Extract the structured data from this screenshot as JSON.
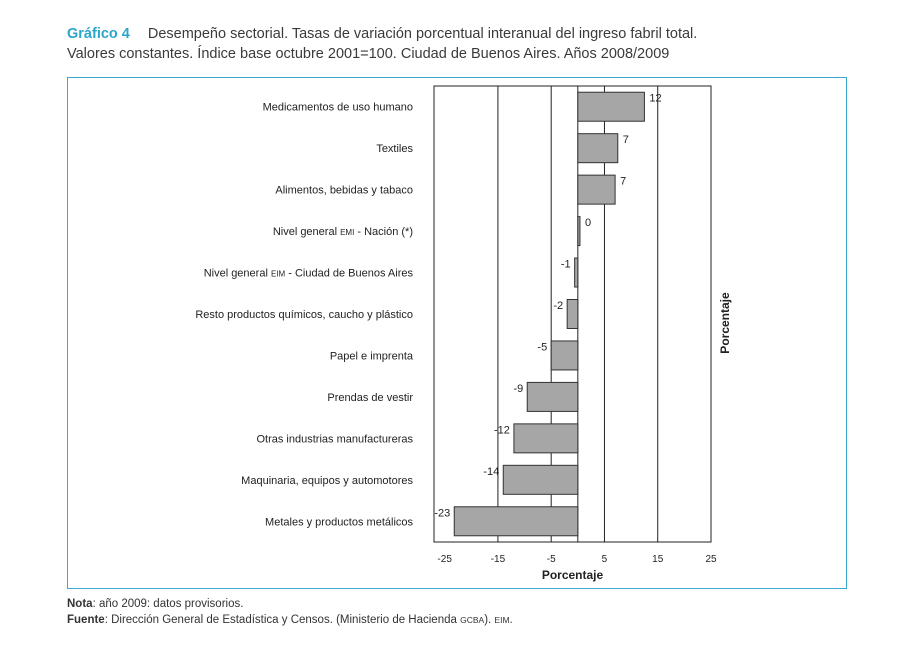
{
  "header": {
    "number": "Gráfico 4",
    "title_line1": "Desempeño sectorial. Tasas de variación porcentual interanual del ingreso fabril total.",
    "title_line2": "Valores constantes. Índice base octubre 2001=100. Ciudad de Buenos Aires. Años 2008/2009"
  },
  "chart_data": {
    "type": "bar",
    "orientation": "horizontal",
    "categories": [
      "Medicamentos de uso humano",
      "Textiles",
      "Alimentos, bebidas y tabaco",
      "Nivel general EMI - Nación (*)",
      "Nivel general EIM - Ciudad de Buenos Aires",
      "Resto productos químicos, caucho y plástico",
      "Papel e imprenta",
      "Prendas de vestir",
      "Otras industrias manufactureras",
      "Maquinaria, equipos y automotores",
      "Metales y productos metálicos"
    ],
    "category_parts": [
      [
        "Medicamentos de uso humano"
      ],
      [
        "Textiles"
      ],
      [
        "Alimentos, bebidas y tabaco"
      ],
      [
        "Nivel general ",
        "EMI",
        " - Nación (*)"
      ],
      [
        "Nivel general ",
        "EIM",
        " - Ciudad de Buenos Aires"
      ],
      [
        "Resto productos químicos, caucho y plástico"
      ],
      [
        "Papel e imprenta"
      ],
      [
        "Prendas de vestir"
      ],
      [
        "Otras industrias manufactureras"
      ],
      [
        "Maquinaria, equipos y automotores"
      ],
      [
        "Metales y productos metálicos"
      ]
    ],
    "values": [
      12.5,
      7.5,
      7,
      0.4,
      -0.6,
      -2,
      -5,
      -9.5,
      -12,
      -14,
      -23.2
    ],
    "value_labels": [
      "12",
      "7",
      "7",
      "0",
      "-1",
      "-2",
      "-5",
      "-9",
      "-12",
      "-14",
      "-23"
    ],
    "xlim": [
      -27,
      25
    ],
    "xticks": [
      -25,
      -15,
      -5,
      5,
      15,
      25
    ],
    "gridlines_at": [
      -15,
      -5,
      5,
      15
    ],
    "xlabel": "Porcentaje",
    "right_label": "Porcentaje",
    "bar_color": "#a6a6a6",
    "bar_edge_color": "#333333"
  },
  "notes": {
    "nota_label": "Nota",
    "nota_text": ": año 2009: datos provisorios.",
    "fuente_label": "Fuente",
    "fuente_text": ": Dirección General de Estadística y Censos. (Ministerio de Hacienda ",
    "fuente_small1": "GCBA",
    "fuente_mid": "). ",
    "fuente_small2": "EIM",
    "fuente_end": "."
  }
}
